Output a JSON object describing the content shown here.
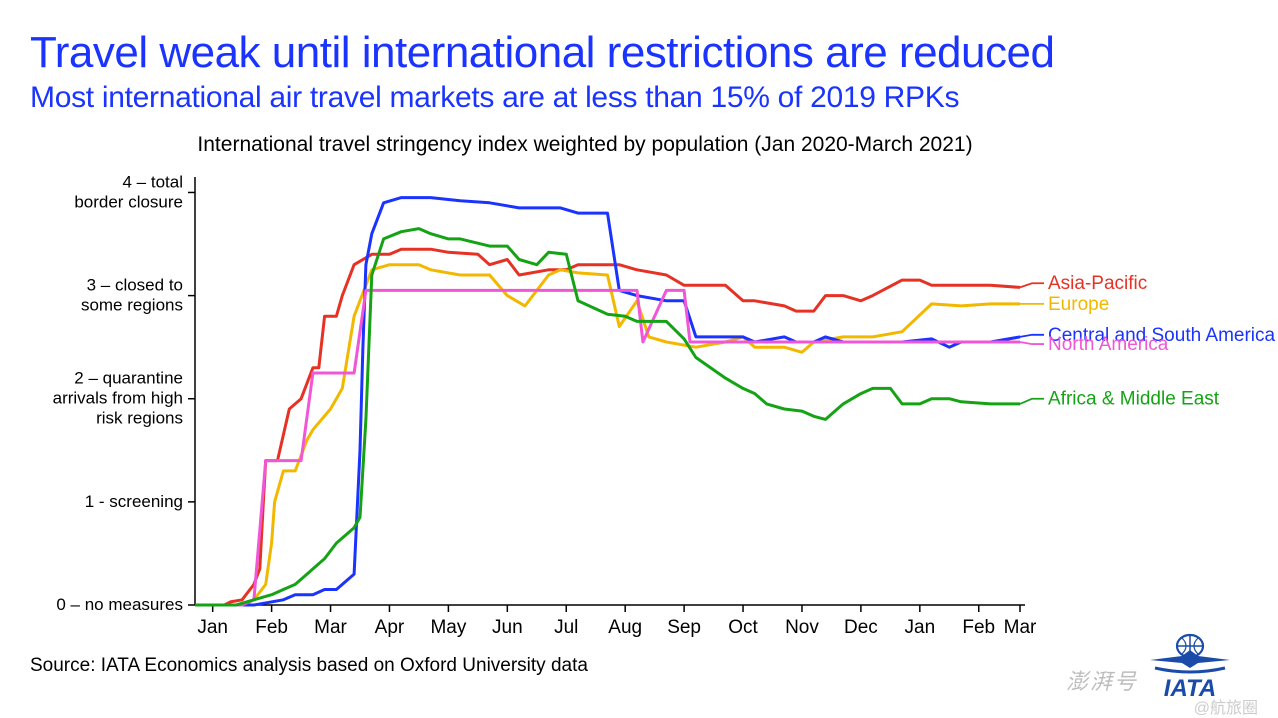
{
  "title": "Travel weak until international restrictions are reduced",
  "subtitle": "Most international air travel markets are at less than 15% of 2019 RPKs",
  "chart_title": "International travel stringency index weighted by population (Jan 2020-March 2021)",
  "source": "Source:  IATA Economics analysis based on Oxford University data",
  "watermark": "澎湃号",
  "watermark2": "@航旅圈",
  "logo_text": "IATA",
  "chart": {
    "type": "line",
    "background_color": "#ffffff",
    "line_width": 3,
    "axis_color": "#000000",
    "axis_width": 1.5,
    "xlim": [
      0,
      14
    ],
    "ylim": [
      0,
      4.15
    ],
    "x_ticks": [
      {
        "pos": 0.3,
        "label": "Jan"
      },
      {
        "pos": 1.3,
        "label": "Feb"
      },
      {
        "pos": 2.3,
        "label": "Mar"
      },
      {
        "pos": 3.3,
        "label": "Apr"
      },
      {
        "pos": 4.3,
        "label": "May"
      },
      {
        "pos": 5.3,
        "label": "Jun"
      },
      {
        "pos": 6.3,
        "label": "Jul"
      },
      {
        "pos": 7.3,
        "label": "Aug"
      },
      {
        "pos": 8.3,
        "label": "Sep"
      },
      {
        "pos": 9.3,
        "label": "Oct"
      },
      {
        "pos": 10.3,
        "label": "Nov"
      },
      {
        "pos": 11.3,
        "label": "Dec"
      },
      {
        "pos": 12.3,
        "label": "Jan"
      },
      {
        "pos": 13.3,
        "label": "Feb"
      },
      {
        "pos": 14.0,
        "label": "Mar"
      }
    ],
    "y_ticks": [
      {
        "pos": 0,
        "label": "0 – no measures"
      },
      {
        "pos": 1,
        "label": "1 - screening"
      },
      {
        "pos": 2,
        "label": [
          "2 – quarantine",
          "arrivals from high",
          "risk regions"
        ]
      },
      {
        "pos": 3,
        "label": [
          "3 – closed to",
          "some  regions"
        ]
      },
      {
        "pos": 4,
        "label": [
          "4 – total",
          "border closure"
        ]
      }
    ],
    "ytick_fontsize": 17,
    "xtick_fontsize": 19,
    "series": [
      {
        "name": "Asia-Pacific",
        "color": "#e63224",
        "legend_y": 3.12,
        "data": [
          [
            0,
            0
          ],
          [
            0.5,
            0
          ],
          [
            0.6,
            0.03
          ],
          [
            0.8,
            0.05
          ],
          [
            1.0,
            0.2
          ],
          [
            1.1,
            0.35
          ],
          [
            1.15,
            0.9
          ],
          [
            1.2,
            1.4
          ],
          [
            1.4,
            1.4
          ],
          [
            1.6,
            1.9
          ],
          [
            1.8,
            2.0
          ],
          [
            2.0,
            2.3
          ],
          [
            2.1,
            2.3
          ],
          [
            2.2,
            2.8
          ],
          [
            2.4,
            2.8
          ],
          [
            2.5,
            3.0
          ],
          [
            2.7,
            3.3
          ],
          [
            3.0,
            3.4
          ],
          [
            3.3,
            3.4
          ],
          [
            3.5,
            3.45
          ],
          [
            4.0,
            3.45
          ],
          [
            4.3,
            3.42
          ],
          [
            4.8,
            3.4
          ],
          [
            5.0,
            3.3
          ],
          [
            5.3,
            3.35
          ],
          [
            5.5,
            3.2
          ],
          [
            6.0,
            3.25
          ],
          [
            6.3,
            3.25
          ],
          [
            6.5,
            3.3
          ],
          [
            7.0,
            3.3
          ],
          [
            7.2,
            3.3
          ],
          [
            7.5,
            3.25
          ],
          [
            8.0,
            3.2
          ],
          [
            8.3,
            3.1
          ],
          [
            8.5,
            3.1
          ],
          [
            9.0,
            3.1
          ],
          [
            9.3,
            2.95
          ],
          [
            9.5,
            2.95
          ],
          [
            10.0,
            2.9
          ],
          [
            10.2,
            2.85
          ],
          [
            10.5,
            2.85
          ],
          [
            10.7,
            3.0
          ],
          [
            11.0,
            3.0
          ],
          [
            11.3,
            2.95
          ],
          [
            11.5,
            3.0
          ],
          [
            12.0,
            3.15
          ],
          [
            12.3,
            3.15
          ],
          [
            12.5,
            3.1
          ],
          [
            13.0,
            3.1
          ],
          [
            13.5,
            3.1
          ],
          [
            14.0,
            3.08
          ]
        ]
      },
      {
        "name": "Europe",
        "color": "#f2b800",
        "legend_y": 2.92,
        "data": [
          [
            0,
            0
          ],
          [
            0.8,
            0
          ],
          [
            1.0,
            0.05
          ],
          [
            1.2,
            0.2
          ],
          [
            1.3,
            0.6
          ],
          [
            1.35,
            1.0
          ],
          [
            1.5,
            1.3
          ],
          [
            1.7,
            1.3
          ],
          [
            1.9,
            1.6
          ],
          [
            2.0,
            1.7
          ],
          [
            2.3,
            1.9
          ],
          [
            2.5,
            2.1
          ],
          [
            2.7,
            2.8
          ],
          [
            3.0,
            3.25
          ],
          [
            3.3,
            3.3
          ],
          [
            3.8,
            3.3
          ],
          [
            4.0,
            3.25
          ],
          [
            4.5,
            3.2
          ],
          [
            5.0,
            3.2
          ],
          [
            5.3,
            3.0
          ],
          [
            5.6,
            2.9
          ],
          [
            6.0,
            3.2
          ],
          [
            6.2,
            3.25
          ],
          [
            6.5,
            3.22
          ],
          [
            7.0,
            3.2
          ],
          [
            7.2,
            2.7
          ],
          [
            7.5,
            2.95
          ],
          [
            7.7,
            2.6
          ],
          [
            8.0,
            2.55
          ],
          [
            8.5,
            2.5
          ],
          [
            9.0,
            2.55
          ],
          [
            9.3,
            2.6
          ],
          [
            9.5,
            2.5
          ],
          [
            10.0,
            2.5
          ],
          [
            10.3,
            2.45
          ],
          [
            10.5,
            2.55
          ],
          [
            11.0,
            2.6
          ],
          [
            11.5,
            2.6
          ],
          [
            12.0,
            2.65
          ],
          [
            12.5,
            2.92
          ],
          [
            13.0,
            2.9
          ],
          [
            13.5,
            2.92
          ],
          [
            14.0,
            2.92
          ]
        ]
      },
      {
        "name": "Central and South America",
        "color": "#1a33ff",
        "legend_y": 2.62,
        "data": [
          [
            0,
            0
          ],
          [
            1.0,
            0
          ],
          [
            1.5,
            0.05
          ],
          [
            1.7,
            0.1
          ],
          [
            2.0,
            0.1
          ],
          [
            2.2,
            0.15
          ],
          [
            2.4,
            0.15
          ],
          [
            2.5,
            0.2
          ],
          [
            2.7,
            0.3
          ],
          [
            2.8,
            1.5
          ],
          [
            2.85,
            2.5
          ],
          [
            2.9,
            3.3
          ],
          [
            3.0,
            3.6
          ],
          [
            3.2,
            3.9
          ],
          [
            3.5,
            3.95
          ],
          [
            4.0,
            3.95
          ],
          [
            4.5,
            3.92
          ],
          [
            5.0,
            3.9
          ],
          [
            5.5,
            3.85
          ],
          [
            6.0,
            3.85
          ],
          [
            6.2,
            3.85
          ],
          [
            6.5,
            3.8
          ],
          [
            7.0,
            3.8
          ],
          [
            7.2,
            3.05
          ],
          [
            7.5,
            3.0
          ],
          [
            8.0,
            2.95
          ],
          [
            8.3,
            2.95
          ],
          [
            8.5,
            2.6
          ],
          [
            9.0,
            2.6
          ],
          [
            9.3,
            2.6
          ],
          [
            9.5,
            2.55
          ],
          [
            10.0,
            2.6
          ],
          [
            10.2,
            2.55
          ],
          [
            10.5,
            2.55
          ],
          [
            10.7,
            2.6
          ],
          [
            11.0,
            2.55
          ],
          [
            11.5,
            2.55
          ],
          [
            12.0,
            2.55
          ],
          [
            12.5,
            2.58
          ],
          [
            12.8,
            2.5
          ],
          [
            13.0,
            2.55
          ],
          [
            13.5,
            2.55
          ],
          [
            14.0,
            2.6
          ]
        ]
      },
      {
        "name": "North America",
        "color": "#f056d6",
        "legend_y": 2.53,
        "data": [
          [
            0,
            0
          ],
          [
            0.8,
            0
          ],
          [
            1.0,
            0.05
          ],
          [
            1.2,
            1.4
          ],
          [
            1.5,
            1.4
          ],
          [
            1.8,
            1.4
          ],
          [
            2.0,
            2.25
          ],
          [
            2.3,
            2.25
          ],
          [
            2.7,
            2.25
          ],
          [
            2.9,
            3.05
          ],
          [
            3.0,
            3.05
          ],
          [
            4.0,
            3.05
          ],
          [
            5.0,
            3.05
          ],
          [
            6.0,
            3.05
          ],
          [
            7.0,
            3.05
          ],
          [
            7.5,
            3.05
          ],
          [
            7.6,
            2.55
          ],
          [
            8.0,
            3.05
          ],
          [
            8.3,
            3.05
          ],
          [
            8.4,
            2.55
          ],
          [
            9.0,
            2.55
          ],
          [
            10.0,
            2.55
          ],
          [
            11.0,
            2.55
          ],
          [
            12.0,
            2.55
          ],
          [
            13.0,
            2.55
          ],
          [
            14.0,
            2.55
          ]
        ]
      },
      {
        "name": "Africa & Middle East",
        "color": "#15a315",
        "legend_y": 2.0,
        "data": [
          [
            0,
            0
          ],
          [
            0.7,
            0
          ],
          [
            1.0,
            0.05
          ],
          [
            1.3,
            0.1
          ],
          [
            1.5,
            0.15
          ],
          [
            1.7,
            0.2
          ],
          [
            1.9,
            0.3
          ],
          [
            2.0,
            0.35
          ],
          [
            2.2,
            0.45
          ],
          [
            2.4,
            0.6
          ],
          [
            2.5,
            0.65
          ],
          [
            2.7,
            0.75
          ],
          [
            2.8,
            0.85
          ],
          [
            2.9,
            1.8
          ],
          [
            3.0,
            3.2
          ],
          [
            3.2,
            3.55
          ],
          [
            3.5,
            3.62
          ],
          [
            3.8,
            3.65
          ],
          [
            4.0,
            3.6
          ],
          [
            4.3,
            3.55
          ],
          [
            4.5,
            3.55
          ],
          [
            5.0,
            3.48
          ],
          [
            5.3,
            3.48
          ],
          [
            5.5,
            3.35
          ],
          [
            5.8,
            3.3
          ],
          [
            6.0,
            3.42
          ],
          [
            6.3,
            3.4
          ],
          [
            6.5,
            2.95
          ],
          [
            7.0,
            2.82
          ],
          [
            7.3,
            2.8
          ],
          [
            7.5,
            2.75
          ],
          [
            8.0,
            2.75
          ],
          [
            8.3,
            2.58
          ],
          [
            8.5,
            2.4
          ],
          [
            9.0,
            2.2
          ],
          [
            9.3,
            2.1
          ],
          [
            9.5,
            2.05
          ],
          [
            9.7,
            1.95
          ],
          [
            10.0,
            1.9
          ],
          [
            10.3,
            1.88
          ],
          [
            10.5,
            1.83
          ],
          [
            10.7,
            1.8
          ],
          [
            11.0,
            1.95
          ],
          [
            11.3,
            2.05
          ],
          [
            11.5,
            2.1
          ],
          [
            11.8,
            2.1
          ],
          [
            12.0,
            1.95
          ],
          [
            12.3,
            1.95
          ],
          [
            12.5,
            2.0
          ],
          [
            12.8,
            2.0
          ],
          [
            13.0,
            1.97
          ],
          [
            13.5,
            1.95
          ],
          [
            14.0,
            1.95
          ]
        ]
      }
    ]
  }
}
